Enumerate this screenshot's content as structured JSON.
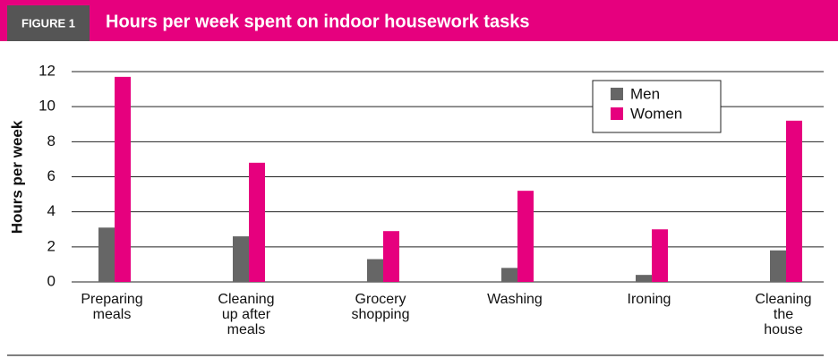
{
  "figure_label": "FIGURE 1",
  "chart_data": {
    "type": "bar",
    "title": "Hours per week spent on indoor housework tasks",
    "y_label": "Hours per week",
    "categories": [
      "Preparing meals",
      "Cleaning up after meals",
      "Grocery shopping",
      "Washing",
      "Ironing",
      "Cleaning the house"
    ],
    "series": [
      {
        "name": "Men",
        "color": "#666666",
        "values": [
          3.1,
          2.6,
          1.3,
          0.8,
          0.4,
          1.8
        ]
      },
      {
        "name": "Women",
        "color": "#e6007e",
        "values": [
          11.7,
          6.8,
          2.9,
          5.2,
          3.0,
          9.2
        ]
      }
    ],
    "ylim": [
      0,
      12
    ],
    "yticks": [
      0,
      2,
      4,
      6,
      8,
      10,
      12
    ],
    "grid": true,
    "legend": "upper right"
  }
}
